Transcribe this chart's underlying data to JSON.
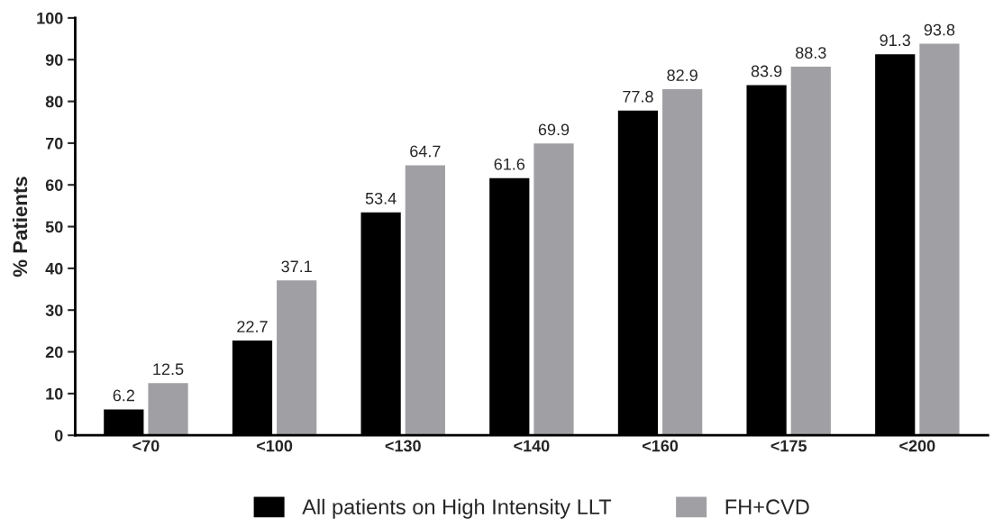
{
  "chart_data": {
    "type": "bar",
    "ylabel": "% Patients",
    "categories": [
      "<70",
      "<100",
      "<130",
      "<140",
      "<160",
      "<175",
      "<200"
    ],
    "series": [
      {
        "name": "All patients on High Intensity LLT",
        "color": "#000000",
        "values": [
          6.2,
          22.7,
          53.4,
          61.6,
          77.8,
          83.9,
          91.3
        ]
      },
      {
        "name": "FH+CVD",
        "color": "#a0a0a4",
        "values": [
          12.5,
          37.1,
          64.7,
          69.9,
          82.9,
          88.3,
          93.8
        ]
      }
    ],
    "ylim": [
      0,
      100
    ],
    "yticks": [
      0,
      10,
      20,
      30,
      40,
      50,
      60,
      70,
      80,
      90,
      100
    ],
    "grid": false,
    "legend": "bottom",
    "data_labels": true
  }
}
